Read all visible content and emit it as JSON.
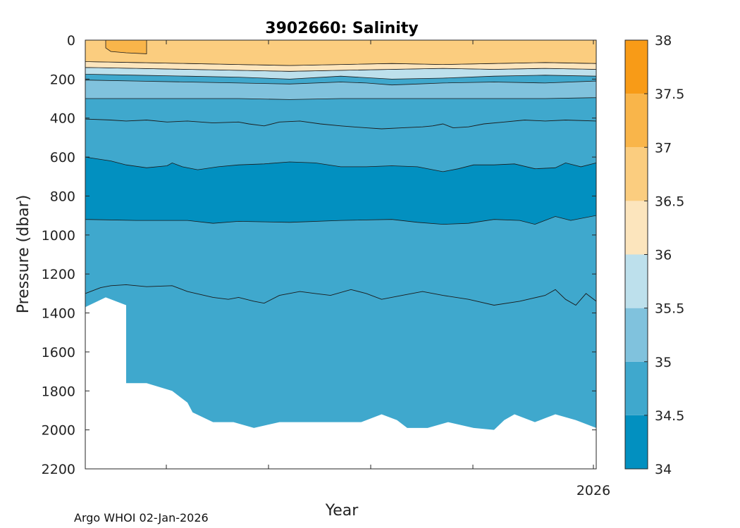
{
  "chart_data": {
    "type": "heatmap",
    "subtype": "filled-contour section",
    "title": "3902660:  Salinity",
    "xlabel": "Year",
    "ylabel": "Pressure (dbar)",
    "x_tick_labels": [
      "",
      "",
      "",
      "",
      "2026"
    ],
    "y_ticks": [
      0,
      200,
      400,
      600,
      800,
      1000,
      1200,
      1400,
      1600,
      1800,
      2000,
      2200
    ],
    "ylim": [
      0,
      2200
    ],
    "xlim": [
      0,
      100
    ],
    "credit": "Argo WHOI 02-Jan-2026",
    "colorbar": {
      "ticks": [
        34,
        34.5,
        35,
        35.5,
        36,
        36.5,
        37,
        37.5,
        38
      ],
      "tick_labels": [
        "34",
        "34.5",
        "35",
        "35.5",
        "36",
        "36.5",
        "37",
        "37.5",
        "38"
      ],
      "colors": [
        "#0290c0",
        "#3fa8cd",
        "#80c2dd",
        "#bde0ec",
        "#fce5bd",
        "#fbcd7f",
        "#f9b54a",
        "#f89b17"
      ]
    },
    "contour_layers": [
      {
        "level": "34.5-35",
        "color": "#3fa8cd",
        "top": [
          [
            0,
            0
          ],
          [
            100,
            0
          ]
        ]
      },
      {
        "level": "34-34.5",
        "color": "#0290c0",
        "top": [
          [
            0,
            600
          ],
          [
            5,
            620
          ],
          [
            8,
            640
          ],
          [
            12,
            655
          ],
          [
            16,
            645
          ],
          [
            17,
            630
          ],
          [
            19,
            650
          ],
          [
            22,
            665
          ],
          [
            26,
            650
          ],
          [
            30,
            640
          ],
          [
            35,
            635
          ],
          [
            40,
            625
          ],
          [
            45,
            630
          ],
          [
            50,
            650
          ],
          [
            55,
            650
          ],
          [
            60,
            645
          ],
          [
            65,
            650
          ],
          [
            70,
            675
          ],
          [
            73,
            660
          ],
          [
            76,
            640
          ],
          [
            80,
            640
          ],
          [
            84,
            635
          ],
          [
            88,
            660
          ],
          [
            92,
            655
          ],
          [
            94,
            630
          ],
          [
            97,
            650
          ],
          [
            100,
            630
          ]
        ],
        "bottom": [
          [
            0,
            920
          ],
          [
            10,
            925
          ],
          [
            20,
            925
          ],
          [
            25,
            940
          ],
          [
            30,
            930
          ],
          [
            40,
            935
          ],
          [
            50,
            925
          ],
          [
            60,
            920
          ],
          [
            65,
            935
          ],
          [
            70,
            945
          ],
          [
            75,
            940
          ],
          [
            80,
            920
          ],
          [
            85,
            925
          ],
          [
            88,
            945
          ],
          [
            92,
            905
          ],
          [
            95,
            925
          ],
          [
            100,
            900
          ]
        ]
      },
      {
        "level": "35-35.5",
        "color": "#80c2dd",
        "top": [
          [
            0,
            205
          ],
          [
            10,
            210
          ],
          [
            20,
            215
          ],
          [
            30,
            220
          ],
          [
            40,
            225
          ],
          [
            50,
            215
          ],
          [
            55,
            220
          ],
          [
            60,
            230
          ],
          [
            65,
            225
          ],
          [
            70,
            220
          ],
          [
            80,
            215
          ],
          [
            90,
            220
          ],
          [
            100,
            210
          ]
        ],
        "bottom": [
          [
            0,
            300
          ],
          [
            10,
            300
          ],
          [
            20,
            300
          ],
          [
            30,
            300
          ],
          [
            40,
            305
          ],
          [
            50,
            300
          ],
          [
            60,
            300
          ],
          [
            70,
            300
          ],
          [
            80,
            300
          ],
          [
            90,
            300
          ],
          [
            100,
            295
          ]
        ]
      },
      {
        "level": "35.5-36",
        "color": "#bde0ec",
        "top": [
          [
            0,
            140
          ],
          [
            10,
            145
          ],
          [
            20,
            150
          ],
          [
            30,
            155
          ],
          [
            40,
            160
          ],
          [
            50,
            155
          ],
          [
            60,
            150
          ],
          [
            70,
            145
          ],
          [
            80,
            150
          ],
          [
            90,
            145
          ],
          [
            100,
            150
          ]
        ],
        "bottom": [
          [
            0,
            175
          ],
          [
            10,
            180
          ],
          [
            20,
            185
          ],
          [
            30,
            190
          ],
          [
            40,
            200
          ],
          [
            50,
            185
          ],
          [
            60,
            200
          ],
          [
            70,
            195
          ],
          [
            80,
            185
          ],
          [
            90,
            180
          ],
          [
            100,
            185
          ]
        ]
      },
      {
        "level": "36-36.5",
        "color": "#fce5bd",
        "top": [
          [
            0,
            110
          ],
          [
            10,
            115
          ],
          [
            20,
            120
          ],
          [
            30,
            125
          ],
          [
            40,
            130
          ],
          [
            50,
            125
          ],
          [
            60,
            120
          ],
          [
            70,
            125
          ],
          [
            80,
            120
          ],
          [
            90,
            115
          ],
          [
            100,
            120
          ]
        ],
        "bottom": [
          [
            0,
            140
          ],
          [
            10,
            145
          ],
          [
            20,
            150
          ],
          [
            30,
            155
          ],
          [
            40,
            160
          ],
          [
            50,
            155
          ],
          [
            60,
            150
          ],
          [
            70,
            145
          ],
          [
            80,
            150
          ],
          [
            90,
            145
          ],
          [
            100,
            150
          ]
        ]
      },
      {
        "level": "36.5-37",
        "color": "#fbcd7f",
        "top": [
          [
            0,
            0
          ],
          [
            100,
            0
          ]
        ],
        "bottom": [
          [
            0,
            110
          ],
          [
            10,
            115
          ],
          [
            20,
            120
          ],
          [
            30,
            125
          ],
          [
            40,
            130
          ],
          [
            50,
            125
          ],
          [
            60,
            120
          ],
          [
            70,
            125
          ],
          [
            80,
            120
          ],
          [
            90,
            115
          ],
          [
            100,
            120
          ]
        ]
      },
      {
        "level": "37-37.5",
        "color": "#f9b54a",
        "patch": true,
        "outline": [
          [
            4,
            0
          ],
          [
            12,
            0
          ],
          [
            12,
            70
          ],
          [
            8,
            65
          ],
          [
            5,
            58
          ],
          [
            4,
            40
          ]
        ]
      }
    ],
    "contour_lines": [
      {
        "level": 34.6,
        "points": [
          [
            0,
            405
          ],
          [
            5,
            410
          ],
          [
            8,
            415
          ],
          [
            12,
            410
          ],
          [
            16,
            420
          ],
          [
            20,
            415
          ],
          [
            25,
            425
          ],
          [
            30,
            420
          ],
          [
            32,
            430
          ],
          [
            35,
            440
          ],
          [
            38,
            420
          ],
          [
            42,
            415
          ],
          [
            46,
            430
          ],
          [
            50,
            440
          ],
          [
            55,
            450
          ],
          [
            58,
            455
          ],
          [
            62,
            450
          ],
          [
            66,
            445
          ],
          [
            68,
            440
          ],
          [
            70,
            430
          ],
          [
            72,
            450
          ],
          [
            75,
            445
          ],
          [
            78,
            430
          ],
          [
            82,
            420
          ],
          [
            86,
            410
          ],
          [
            90,
            415
          ],
          [
            94,
            410
          ],
          [
            100,
            415
          ]
        ]
      },
      {
        "level": 34.8,
        "points": [
          [
            0,
            1300
          ],
          [
            3,
            1270
          ],
          [
            5,
            1260
          ],
          [
            8,
            1255
          ],
          [
            12,
            1265
          ],
          [
            17,
            1260
          ],
          [
            20,
            1290
          ],
          [
            25,
            1320
          ],
          [
            28,
            1330
          ],
          [
            30,
            1320
          ],
          [
            33,
            1340
          ],
          [
            35,
            1350
          ],
          [
            38,
            1310
          ],
          [
            42,
            1290
          ],
          [
            45,
            1300
          ],
          [
            48,
            1310
          ],
          [
            52,
            1280
          ],
          [
            55,
            1300
          ],
          [
            58,
            1330
          ],
          [
            62,
            1310
          ],
          [
            66,
            1290
          ],
          [
            70,
            1310
          ],
          [
            75,
            1330
          ],
          [
            80,
            1360
          ],
          [
            85,
            1340
          ],
          [
            90,
            1310
          ],
          [
            92,
            1280
          ],
          [
            94,
            1330
          ],
          [
            96,
            1360
          ],
          [
            98,
            1300
          ],
          [
            100,
            1340
          ]
        ]
      }
    ],
    "data_mask_bottom": [
      [
        0,
        1370
      ],
      [
        4,
        1320
      ],
      [
        8,
        1360
      ],
      [
        8,
        1760
      ],
      [
        12,
        1760
      ],
      [
        17,
        1800
      ],
      [
        20,
        1860
      ],
      [
        21,
        1910
      ],
      [
        25,
        1960
      ],
      [
        29,
        1960
      ],
      [
        33,
        1990
      ],
      [
        38,
        1960
      ],
      [
        43,
        1960
      ],
      [
        48,
        1960
      ],
      [
        54,
        1960
      ],
      [
        58,
        1920
      ],
      [
        61,
        1950
      ],
      [
        63,
        1990
      ],
      [
        67,
        1990
      ],
      [
        71,
        1960
      ],
      [
        76,
        1990
      ],
      [
        80,
        2000
      ],
      [
        82,
        1950
      ],
      [
        84,
        1920
      ],
      [
        88,
        1960
      ],
      [
        90,
        1940
      ],
      [
        92,
        1920
      ],
      [
        96,
        1950
      ],
      [
        100,
        1990
      ]
    ]
  }
}
